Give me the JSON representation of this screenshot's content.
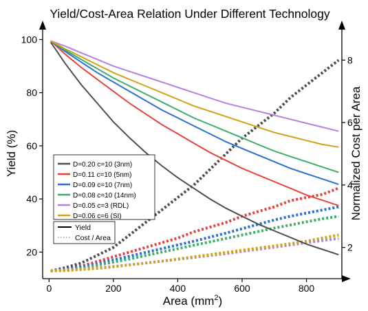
{
  "chart_data": {
    "type": "line",
    "title": "Yield/Cost-Area Relation Under Different Technology",
    "xlabel": "Area (mm",
    "xlabel_sup": "2",
    "xlabel_close": ")",
    "ylabel": "Yield (%)",
    "y2label": "Normalized Cost per Area",
    "xlim": [
      -20,
      910
    ],
    "ylim": [
      10,
      104
    ],
    "y2lim": [
      1.0,
      9.0
    ],
    "xticks": [
      "0",
      "200",
      "400",
      "600",
      "800"
    ],
    "xtick_values": [
      0,
      200,
      400,
      600,
      800
    ],
    "yticks": [
      "20",
      "40",
      "60",
      "80",
      "100"
    ],
    "ytick_values": [
      20,
      40,
      60,
      80,
      100
    ],
    "y2ticks": [
      "2",
      "4",
      "6",
      "8"
    ],
    "y2tick_values": [
      2,
      4,
      6,
      8
    ],
    "grid": false,
    "legend": {
      "placement": "left",
      "entries": [
        {
          "label": "D=0.20 c=10 (3nm)",
          "color": "#4d4d4d"
        },
        {
          "label": "D=0.11 c=10 (5nm)",
          "color": "#e8413d"
        },
        {
          "label": "D=0.09 c=10 (7nm)",
          "color": "#2a6fd6"
        },
        {
          "label": "D=0.08 c=10 (14nm)",
          "color": "#3aae6a"
        },
        {
          "label": "D=0.05 c=3   (RDL)",
          "color": "#b97fe0"
        },
        {
          "label": "D=0.06 c=6   (SI)",
          "color": "#d1a214"
        }
      ],
      "style_entries": [
        {
          "label": "Yield",
          "style": "solid"
        },
        {
          "label": "Cost / Area",
          "style": "dotted"
        }
      ]
    },
    "x": [
      5,
      50,
      100,
      150,
      200,
      250,
      300,
      350,
      400,
      450,
      500,
      550,
      600,
      650,
      700,
      750,
      800,
      850,
      900
    ],
    "series": [
      {
        "color": "#4d4d4d",
        "yield": [
          99.0,
          91.0,
          83.0,
          76.0,
          69.0,
          63.0,
          57.5,
          52.5,
          48.0,
          44.0,
          40.0,
          36.5,
          33.5,
          30.5,
          28.0,
          25.5,
          23.0,
          21.0,
          19.0
        ],
        "cost": [
          1.25,
          1.35,
          1.5,
          1.75,
          2.0,
          2.4,
          2.8,
          3.2,
          3.6,
          4.0,
          4.5,
          5.0,
          5.5,
          5.9,
          6.3,
          6.8,
          7.2,
          7.6,
          8.0
        ]
      },
      {
        "color": "#e8413d",
        "yield": [
          99.5,
          94.5,
          89.5,
          85.0,
          80.5,
          76.0,
          72.0,
          68.0,
          64.5,
          61.0,
          57.5,
          54.5,
          51.5,
          49.0,
          46.5,
          44.0,
          41.5,
          39.5,
          37.5
        ],
        "cost": [
          1.25,
          1.3,
          1.4,
          1.55,
          1.7,
          1.85,
          2.0,
          2.15,
          2.3,
          2.5,
          2.65,
          2.8,
          3.0,
          3.15,
          3.3,
          3.5,
          3.6,
          3.7,
          3.9
        ]
      },
      {
        "color": "#2a6fd6",
        "yield": [
          99.5,
          95.5,
          91.5,
          87.5,
          84.0,
          80.5,
          77.0,
          73.5,
          70.5,
          67.5,
          64.5,
          61.5,
          59.0,
          56.5,
          54.0,
          51.5,
          49.5,
          47.5,
          45.5
        ],
        "cost": [
          1.25,
          1.3,
          1.38,
          1.48,
          1.6,
          1.72,
          1.84,
          1.96,
          2.08,
          2.2,
          2.33,
          2.46,
          2.6,
          2.74,
          2.88,
          3.0,
          3.1,
          3.2,
          3.3
        ]
      },
      {
        "color": "#3aae6a",
        "yield": [
          99.5,
          96.0,
          92.5,
          89.0,
          85.5,
          82.5,
          79.5,
          76.5,
          73.5,
          70.5,
          68.0,
          65.5,
          63.0,
          60.5,
          58.0,
          56.0,
          54.0,
          52.0,
          50.0
        ],
        "cost": [
          1.25,
          1.28,
          1.34,
          1.43,
          1.53,
          1.63,
          1.74,
          1.85,
          1.96,
          2.07,
          2.18,
          2.29,
          2.4,
          2.51,
          2.62,
          2.72,
          2.82,
          2.92,
          3.0
        ]
      },
      {
        "color": "#b97fe0",
        "yield": [
          99.5,
          97.5,
          95.0,
          92.5,
          90.0,
          88.0,
          86.0,
          84.0,
          82.0,
          80.0,
          78.0,
          76.0,
          74.5,
          73.0,
          71.5,
          70.0,
          68.5,
          67.0,
          65.5
        ],
        "cost": [
          1.25,
          1.27,
          1.3,
          1.34,
          1.39,
          1.44,
          1.5,
          1.56,
          1.62,
          1.68,
          1.74,
          1.8,
          1.87,
          1.94,
          2.01,
          2.08,
          2.15,
          2.22,
          2.29
        ]
      },
      {
        "color": "#d1a214",
        "yield": [
          99.5,
          96.5,
          93.5,
          90.5,
          87.5,
          85.0,
          82.5,
          80.0,
          77.5,
          75.0,
          73.0,
          71.0,
          69.0,
          67.0,
          65.0,
          63.5,
          62.0,
          60.5,
          59.5
        ],
        "cost": [
          1.25,
          1.26,
          1.29,
          1.33,
          1.38,
          1.44,
          1.5,
          1.56,
          1.63,
          1.7,
          1.77,
          1.84,
          1.91,
          1.98,
          2.05,
          2.12,
          2.2,
          2.3,
          2.4
        ]
      }
    ]
  }
}
